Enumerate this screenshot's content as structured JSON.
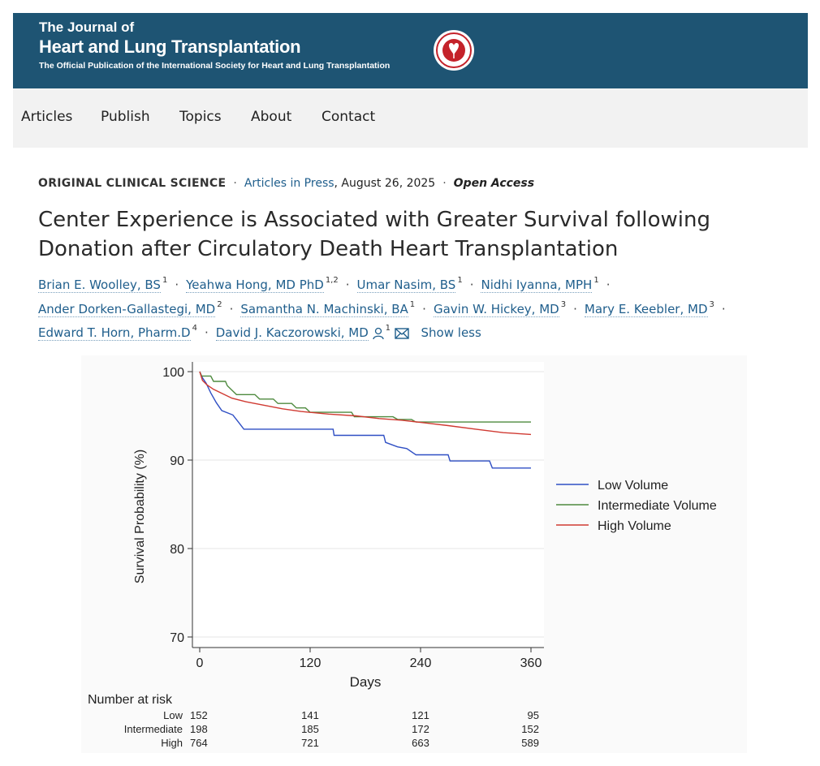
{
  "journal": {
    "name_line1": "The Journal of",
    "name_line2": "Heart and Lung Transplantation",
    "subtitle": "The Official Publication of the International Society for Heart and Lung Transplantation",
    "seal_icon": "society-seal-icon",
    "banner_color": "#1e5473"
  },
  "nav": {
    "items": [
      "Articles",
      "Publish",
      "Topics",
      "About",
      "Contact"
    ]
  },
  "article": {
    "section": "ORIGINAL CLINICAL SCIENCE",
    "status_link": "Articles in Press",
    "date": ", August 26, 2025",
    "access": "Open Access",
    "title": "Center Experience is Associated with Greater Survival following Donation after Circulatory Death Heart Transplantation",
    "authors": [
      {
        "name": "Brian E. Woolley, BS",
        "sup": "1"
      },
      {
        "name": "Yeahwa Hong, MD PhD",
        "sup": "1,2"
      },
      {
        "name": "Umar Nasim, BS",
        "sup": "1"
      },
      {
        "name": "Nidhi Iyanna, MPH",
        "sup": "1"
      },
      {
        "name": "Ander Dorken-Gallastegi, MD",
        "sup": "2"
      },
      {
        "name": "Samantha N. Machinski, BA",
        "sup": "1"
      },
      {
        "name": "Gavin W. Hickey, MD",
        "sup": "3"
      },
      {
        "name": "Mary E. Keebler, MD",
        "sup": "3"
      },
      {
        "name": "Edward T. Horn, Pharm.D",
        "sup": "4"
      },
      {
        "name": "David J. Kaczorowski, MD",
        "sup": "1"
      }
    ],
    "show_less": "Show less",
    "corresponding_icons": [
      "person-icon",
      "envelope-icon"
    ]
  },
  "chart_data": {
    "type": "line",
    "title": "",
    "xlabel": "Days",
    "ylabel": "Survival Probability (%)",
    "xlim": [
      0,
      360
    ],
    "ylim": [
      70,
      100
    ],
    "x_ticks": [
      0,
      120,
      240,
      360
    ],
    "y_ticks": [
      70,
      80,
      90,
      100
    ],
    "grid": "horizontal",
    "legend": "right",
    "series": [
      {
        "name": "Low Volume",
        "color": "#2f4fc4",
        "points": [
          [
            0,
            100
          ],
          [
            3,
            99.3
          ],
          [
            7,
            98.7
          ],
          [
            12,
            97.6
          ],
          [
            18,
            96.5
          ],
          [
            24,
            95.6
          ],
          [
            36,
            95.1
          ],
          [
            42,
            94.3
          ],
          [
            48,
            93.5
          ],
          [
            145,
            93.5
          ],
          [
            146,
            92.8
          ],
          [
            200,
            92.8
          ],
          [
            202,
            92.0
          ],
          [
            215,
            91.5
          ],
          [
            225,
            91.3
          ],
          [
            235,
            90.6
          ],
          [
            270,
            90.6
          ],
          [
            272,
            89.9
          ],
          [
            315,
            89.9
          ],
          [
            318,
            89.1
          ],
          [
            360,
            89.1
          ]
        ]
      },
      {
        "name": "Intermediate Volume",
        "color": "#4e8a3e",
        "points": [
          [
            0,
            100
          ],
          [
            2,
            99.5
          ],
          [
            12,
            99.5
          ],
          [
            15,
            98.9
          ],
          [
            28,
            98.9
          ],
          [
            30,
            98.4
          ],
          [
            35,
            97.9
          ],
          [
            40,
            97.4
          ],
          [
            60,
            97.4
          ],
          [
            65,
            96.9
          ],
          [
            80,
            96.9
          ],
          [
            85,
            96.4
          ],
          [
            100,
            96.4
          ],
          [
            105,
            95.9
          ],
          [
            115,
            95.9
          ],
          [
            120,
            95.4
          ],
          [
            165,
            95.4
          ],
          [
            168,
            94.9
          ],
          [
            210,
            94.9
          ],
          [
            215,
            94.6
          ],
          [
            230,
            94.6
          ],
          [
            235,
            94.3
          ],
          [
            360,
            94.3
          ]
        ]
      },
      {
        "name": "High Volume",
        "color": "#d03a32",
        "points": [
          [
            0,
            100
          ],
          [
            3,
            99
          ],
          [
            8,
            98.5
          ],
          [
            15,
            98
          ],
          [
            25,
            97.5
          ],
          [
            35,
            97
          ],
          [
            50,
            96.6
          ],
          [
            70,
            96.2
          ],
          [
            90,
            95.8
          ],
          [
            110,
            95.5
          ],
          [
            140,
            95.2
          ],
          [
            170,
            95.0
          ],
          [
            195,
            94.7
          ],
          [
            220,
            94.5
          ],
          [
            245,
            94.2
          ],
          [
            270,
            93.9
          ],
          [
            300,
            93.5
          ],
          [
            330,
            93.1
          ],
          [
            360,
            92.9
          ]
        ]
      }
    ],
    "risk_table": {
      "title": "Number at risk",
      "times": [
        0,
        120,
        240,
        360
      ],
      "rows": [
        {
          "label": "Low",
          "values": [
            "152",
            "141",
            "121",
            "95"
          ]
        },
        {
          "label": "Intermediate",
          "values": [
            "198",
            "185",
            "172",
            "152"
          ]
        },
        {
          "label": "High",
          "values": [
            "764",
            "721",
            "663",
            "589"
          ]
        }
      ]
    }
  }
}
